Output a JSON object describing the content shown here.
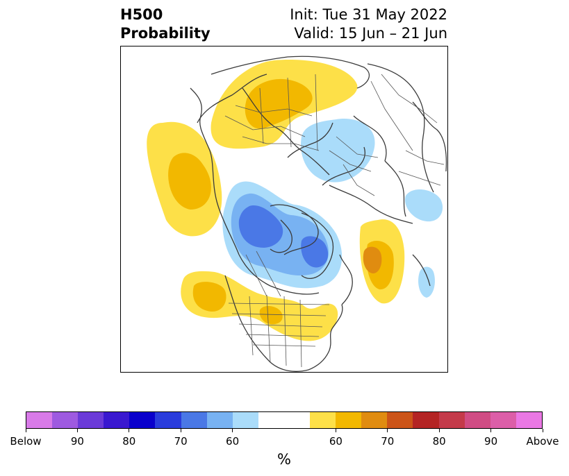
{
  "header": {
    "title_line1": "H500",
    "title_line2": "Probability",
    "init_line": "Init: Tue 31 May 2022",
    "valid_line": "Valid: 15 Jun – 21 Jun"
  },
  "map": {
    "projection": "north-polar-stereographic",
    "anomalies": [
      {
        "name": "above-normal-north-pacific",
        "category": "Above",
        "max_percent": 60
      },
      {
        "name": "above-normal-west-russia",
        "category": "Above",
        "max_percent": 60
      },
      {
        "name": "above-normal-north-atlantic",
        "category": "Above",
        "max_percent": 70
      },
      {
        "name": "above-normal-north-america",
        "category": "Above",
        "max_percent": 60
      },
      {
        "name": "below-normal-arctic",
        "category": "Below",
        "max_percent": 80
      },
      {
        "name": "below-normal-europe",
        "category": "Below",
        "max_percent": 60
      },
      {
        "name": "below-normal-east-atlantic",
        "category": "Below",
        "max_percent": 60
      }
    ]
  },
  "colorbar": {
    "colors": [
      "#d87ae8",
      "#9e5ae0",
      "#6b3ad8",
      "#3a18d0",
      "#0a00cc",
      "#2a3cdc",
      "#4a78e6",
      "#78b2f2",
      "#aadcfa",
      "#ffffff",
      "#ffffff",
      "#fde048",
      "#f2b800",
      "#e08c10",
      "#cc5418",
      "#b42424",
      "#c43a4a",
      "#d04c84",
      "#dc5ea8",
      "#ea78e4"
    ],
    "ticks": [
      "Below",
      "90",
      "80",
      "70",
      "60",
      "60",
      "70",
      "80",
      "90",
      "Above"
    ],
    "unit": "%"
  }
}
